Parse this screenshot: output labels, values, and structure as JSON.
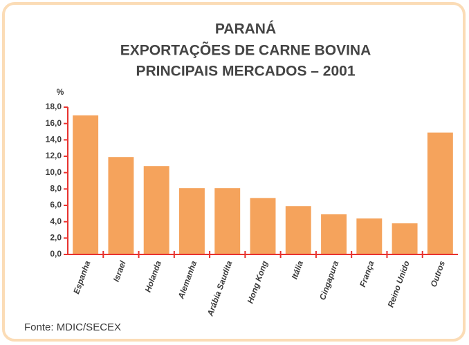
{
  "chart_data": {
    "type": "bar",
    "title": [
      "PARANÁ",
      "EXPORTAÇÕES DE CARNE BOVINA",
      "PRINCIPAIS MERCADOS – 2001"
    ],
    "y_label": "%",
    "source": "Fonte: MDIC/SECEX",
    "categories": [
      "Espanha",
      "Israel",
      "Holanda",
      "Alemanha",
      "Arábia Saudita",
      "Hong Kong",
      "Itália",
      "Cingapura",
      "França",
      "Reino Unido",
      "Outros"
    ],
    "values": [
      17.0,
      11.9,
      10.8,
      8.1,
      8.1,
      6.9,
      5.9,
      4.9,
      4.4,
      3.8,
      14.9
    ],
    "color": "#f5a35c",
    "axis_color": "#e8322e",
    "ylim": [
      0,
      18
    ],
    "yticks": [
      {
        "value": 0,
        "label": "0,0"
      },
      {
        "value": 2,
        "label": "2,0"
      },
      {
        "value": 4,
        "label": "4,0"
      },
      {
        "value": 6,
        "label": "6,0"
      },
      {
        "value": 8,
        "label": "8,0"
      },
      {
        "value": 10,
        "label": "10,0"
      },
      {
        "value": 12,
        "label": "12,0"
      },
      {
        "value": 14,
        "label": "14,0"
      },
      {
        "value": 16,
        "label": "16,0"
      },
      {
        "value": 18,
        "label": "18,0"
      }
    ],
    "grid": false
  }
}
